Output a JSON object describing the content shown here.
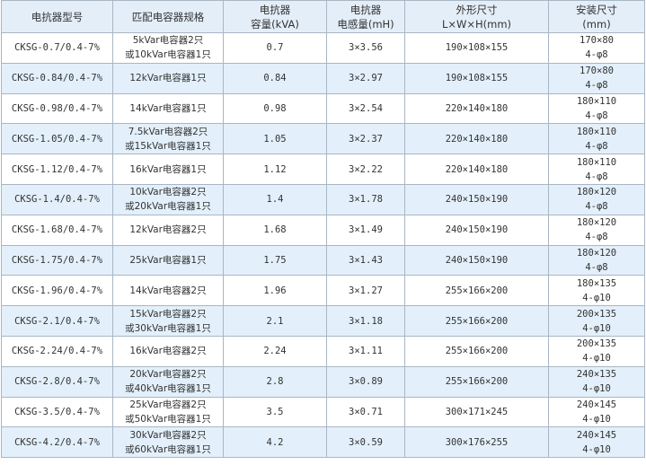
{
  "headers": [
    [
      "电抗器型号"
    ],
    [
      "匹配电容器规格"
    ],
    [
      "电抗器",
      "容量(kVA)"
    ],
    [
      "电抗器",
      "电感量(mH)"
    ],
    [
      "外形尺寸",
      "L×W×H(mm)"
    ],
    [
      "安装尺寸",
      "(mm)"
    ]
  ],
  "colors": {
    "header_bg": "#e4eef8",
    "alt_row_bg": "#e3f0fb",
    "border": "#a9b6c4"
  },
  "rows": [
    {
      "model": "CKSG-0.7/0.4-7%",
      "spec": [
        "5kVar电容器2只",
        "或10kVar电容器1只"
      ],
      "capacity": "0.7",
      "inductance": "3×3.56",
      "size": "190×108×155",
      "mount": [
        "170×80",
        "4-φ8"
      ]
    },
    {
      "model": "CKSG-0.84/0.4-7%",
      "spec": [
        "12kVar电容器1只"
      ],
      "capacity": "0.84",
      "inductance": "3×2.97",
      "size": "190×108×155",
      "mount": [
        "170×80",
        "4-φ8"
      ]
    },
    {
      "model": "CKSG-0.98/0.4-7%",
      "spec": [
        "14kVar电容器1只"
      ],
      "capacity": "0.98",
      "inductance": "3×2.54",
      "size": "220×140×180",
      "mount": [
        "180×110",
        "4-φ8"
      ]
    },
    {
      "model": "CKSG-1.05/0.4-7%",
      "spec": [
        "7.5kVar电容器2只",
        "或15kVar电容器1只"
      ],
      "capacity": "1.05",
      "inductance": "3×2.37",
      "size": "220×140×180",
      "mount": [
        "180×110",
        "4-φ8"
      ]
    },
    {
      "model": "CKSG-1.12/0.4-7%",
      "spec": [
        "16kVar电容器1只"
      ],
      "capacity": "1.12",
      "inductance": "3×2.22",
      "size": "220×140×180",
      "mount": [
        "180×110",
        "4-φ8"
      ]
    },
    {
      "model": "CKSG-1.4/0.4-7%",
      "spec": [
        "10kVar电容器2只",
        "或20kVar电容器1只"
      ],
      "capacity": "1.4",
      "inductance": "3×1.78",
      "size": "240×150×190",
      "mount": [
        "180×120",
        "4-φ8"
      ]
    },
    {
      "model": "CKSG-1.68/0.4-7%",
      "spec": [
        "12kVar电容器2只"
      ],
      "capacity": "1.68",
      "inductance": "3×1.49",
      "size": "240×150×190",
      "mount": [
        "180×120",
        "4-φ8"
      ]
    },
    {
      "model": "CKSG-1.75/0.4-7%",
      "spec": [
        "25kVar电容器1只"
      ],
      "capacity": "1.75",
      "inductance": "3×1.43",
      "size": "240×150×190",
      "mount": [
        "180×120",
        "4-φ8"
      ]
    },
    {
      "model": "CKSG-1.96/0.4-7%",
      "spec": [
        "14kVar电容器2只"
      ],
      "capacity": "1.96",
      "inductance": "3×1.27",
      "size": "255×166×200",
      "mount": [
        "180×135",
        "4-φ10"
      ]
    },
    {
      "model": "CKSG-2.1/0.4-7%",
      "spec": [
        "15kVar电容器2只",
        "或30kVar电容器1只"
      ],
      "capacity": "2.1",
      "inductance": "3×1.18",
      "size": "255×166×200",
      "mount": [
        "200×135",
        "4-φ10"
      ]
    },
    {
      "model": "CKSG-2.24/0.4-7%",
      "spec": [
        "16kVar电容器2只"
      ],
      "capacity": "2.24",
      "inductance": "3×1.11",
      "size": "255×166×200",
      "mount": [
        "200×135",
        "4-φ10"
      ]
    },
    {
      "model": "CKSG-2.8/0.4-7%",
      "spec": [
        "20kVar电容器2只",
        "或40kVar电容器1只"
      ],
      "capacity": "2.8",
      "inductance": "3×0.89",
      "size": "255×166×200",
      "mount": [
        "240×135",
        "4-φ10"
      ]
    },
    {
      "model": "CKSG-3.5/0.4-7%",
      "spec": [
        "25kVar电容器2只",
        "或50kVar电容器1只"
      ],
      "capacity": "3.5",
      "inductance": "3×0.71",
      "size": "300×171×245",
      "mount": [
        "240×145",
        "4-φ10"
      ]
    },
    {
      "model": "CKSG-4.2/0.4-7%",
      "spec": [
        "30kVar电容器2只",
        "或60kVar电容器1只"
      ],
      "capacity": "4.2",
      "inductance": "3×0.59",
      "size": "300×176×255",
      "mount": [
        "240×145",
        "4-φ10"
      ]
    }
  ]
}
